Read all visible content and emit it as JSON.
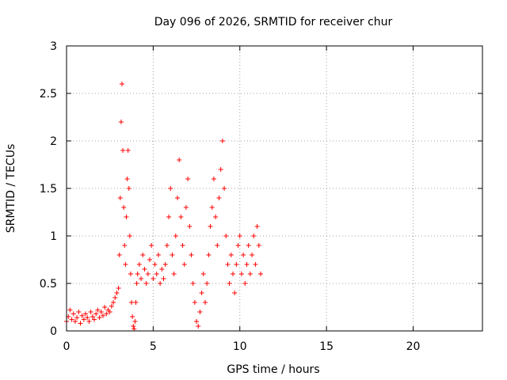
{
  "colors": {
    "series": "#ff0000",
    "grid": "#a0a0a0",
    "axis": "#000000"
  },
  "chart_data": {
    "type": "scatter",
    "title": "Day 096 of 2026, SRMTID for receiver chur",
    "xlabel": "GPS time / hours",
    "ylabel": "SRMTID / TECUs",
    "xlim": [
      0,
      24
    ],
    "ylim": [
      0,
      3
    ],
    "xticks": [
      0,
      5,
      10,
      15,
      20
    ],
    "yticks": [
      0,
      0.5,
      1,
      1.5,
      2,
      2.5,
      3
    ],
    "xtick_labels": [
      "0",
      "5",
      "10",
      "15",
      "20"
    ],
    "ytick_labels": [
      "0",
      "0.5",
      "1",
      "1.5",
      "2",
      "2.5",
      "3"
    ],
    "grid": true,
    "marker": "+",
    "series": [
      {
        "name": "SRMTID",
        "x": [
          0.0,
          0.1,
          0.2,
          0.3,
          0.4,
          0.5,
          0.6,
          0.7,
          0.8,
          0.9,
          1.0,
          1.1,
          1.2,
          1.3,
          1.4,
          1.5,
          1.6,
          1.7,
          1.8,
          1.9,
          2.0,
          2.1,
          2.2,
          2.3,
          2.4,
          2.5,
          2.6,
          2.7,
          2.8,
          2.9,
          3.0,
          3.05,
          3.1,
          3.15,
          3.2,
          3.25,
          3.3,
          3.35,
          3.4,
          3.45,
          3.5,
          3.55,
          3.6,
          3.65,
          3.7,
          3.75,
          3.8,
          3.85,
          3.9,
          3.95,
          4.0,
          4.05,
          4.1,
          4.2,
          4.3,
          4.4,
          4.5,
          4.6,
          4.7,
          4.8,
          4.9,
          5.0,
          5.1,
          5.2,
          5.3,
          5.4,
          5.5,
          5.6,
          5.7,
          5.8,
          5.9,
          6.0,
          6.1,
          6.2,
          6.3,
          6.4,
          6.5,
          6.6,
          6.7,
          6.8,
          6.9,
          7.0,
          7.1,
          7.2,
          7.3,
          7.4,
          7.5,
          7.6,
          7.7,
          7.8,
          7.9,
          8.0,
          8.1,
          8.2,
          8.3,
          8.4,
          8.5,
          8.6,
          8.7,
          8.8,
          8.9,
          9.0,
          9.1,
          9.2,
          9.3,
          9.4,
          9.5,
          9.6,
          9.7,
          9.8,
          9.9,
          10.0,
          10.1,
          10.2,
          10.3,
          10.4,
          10.5,
          10.6,
          10.7,
          10.8,
          10.9,
          11.0,
          11.1,
          11.2
        ],
        "y": [
          0.1,
          0.15,
          0.22,
          0.12,
          0.18,
          0.1,
          0.14,
          0.2,
          0.08,
          0.16,
          0.12,
          0.18,
          0.14,
          0.1,
          0.2,
          0.15,
          0.12,
          0.18,
          0.22,
          0.14,
          0.2,
          0.16,
          0.25,
          0.18,
          0.22,
          0.2,
          0.26,
          0.3,
          0.35,
          0.4,
          0.45,
          0.8,
          1.4,
          2.2,
          2.6,
          1.9,
          1.3,
          0.9,
          0.7,
          1.2,
          1.6,
          1.9,
          1.5,
          1.0,
          0.6,
          0.3,
          0.15,
          0.05,
          0.02,
          0.1,
          0.3,
          0.5,
          0.6,
          0.7,
          0.55,
          0.8,
          0.65,
          0.5,
          0.6,
          0.75,
          0.9,
          0.55,
          0.7,
          0.6,
          0.8,
          0.5,
          0.65,
          0.55,
          0.7,
          0.9,
          1.2,
          1.5,
          0.8,
          0.6,
          1.0,
          1.4,
          1.8,
          1.2,
          0.9,
          0.7,
          1.3,
          1.6,
          1.1,
          0.8,
          0.5,
          0.3,
          0.1,
          0.05,
          0.2,
          0.4,
          0.6,
          0.3,
          0.5,
          0.8,
          1.1,
          1.3,
          1.6,
          1.2,
          0.9,
          1.4,
          1.7,
          2.0,
          1.5,
          1.0,
          0.7,
          0.5,
          0.8,
          0.6,
          0.4,
          0.7,
          0.9,
          1.0,
          0.6,
          0.8,
          0.5,
          0.7,
          0.9,
          0.6,
          0.8,
          1.0,
          0.7,
          1.1,
          0.9,
          0.6
        ]
      }
    ]
  }
}
